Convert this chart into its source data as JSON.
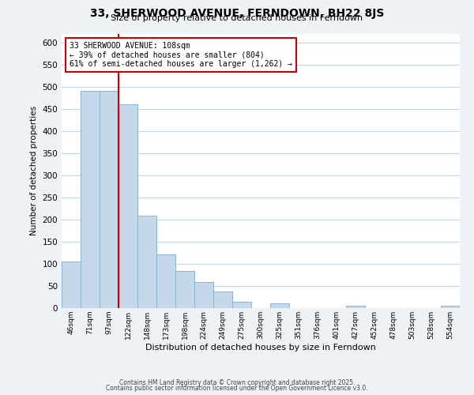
{
  "title": "33, SHERWOOD AVENUE, FERNDOWN, BH22 8JS",
  "subtitle": "Size of property relative to detached houses in Ferndown",
  "xlabel": "Distribution of detached houses by size in Ferndown",
  "ylabel": "Number of detached properties",
  "bar_labels": [
    "46sqm",
    "71sqm",
    "97sqm",
    "122sqm",
    "148sqm",
    "173sqm",
    "198sqm",
    "224sqm",
    "249sqm",
    "275sqm",
    "300sqm",
    "325sqm",
    "351sqm",
    "376sqm",
    "401sqm",
    "427sqm",
    "452sqm",
    "478sqm",
    "503sqm",
    "528sqm",
    "554sqm"
  ],
  "bar_values": [
    105,
    490,
    490,
    460,
    208,
    122,
    83,
    58,
    37,
    15,
    0,
    10,
    0,
    0,
    0,
    5,
    0,
    0,
    0,
    0,
    5
  ],
  "bar_color": "#c5d8ea",
  "bar_edge_color": "#8ab4cf",
  "vline_color": "#cc0000",
  "annotation_title": "33 SHERWOOD AVENUE: 108sqm",
  "annotation_line1": "← 39% of detached houses are smaller (804)",
  "annotation_line2": "61% of semi-detached houses are larger (1,262) →",
  "annotation_box_color": "#ffffff",
  "annotation_box_edge": "#cc0000",
  "ylim": [
    0,
    620
  ],
  "yticks": [
    0,
    50,
    100,
    150,
    200,
    250,
    300,
    350,
    400,
    450,
    500,
    550,
    600
  ],
  "footer1": "Contains HM Land Registry data © Crown copyright and database right 2025.",
  "footer2": "Contains public sector information licensed under the Open Government Licence v3.0.",
  "bg_color": "#eef2f7",
  "plot_bg_color": "#ffffff",
  "grid_color": "#c8d4e3"
}
